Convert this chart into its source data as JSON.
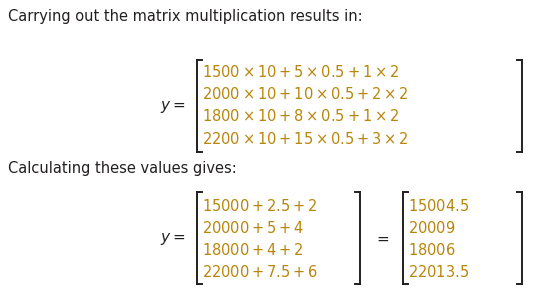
{
  "bg_color": "#ffffff",
  "text_color": "#231f20",
  "math_color": "#b8860b",
  "title1": "Carrying out the matrix multiplication results in:",
  "title2": "Calculating these values gives:",
  "section1_rows": [
    "1500 \\times 10 + 5 \\times 0.5 + 1 \\times 2",
    "2000 \\times 10 + 10 \\times 0.5 + 2 \\times 2",
    "1800 \\times 10 + 8 \\times 0.5 + 1 \\times 2",
    "2200 \\times 10 + 15 \\times 0.5 + 3 \\times 2"
  ],
  "section2_rows": [
    "15000 + 2.5 + 2",
    "20000 + 5 + 4",
    "18000 + 4 + 2",
    "22000 + 7.5 + 6"
  ],
  "section2_result_rows": [
    "15004.5",
    "20009",
    "18006",
    "22013.5"
  ],
  "title_fs": 10.5,
  "math_fs": 10.5,
  "label_fs": 11.0
}
